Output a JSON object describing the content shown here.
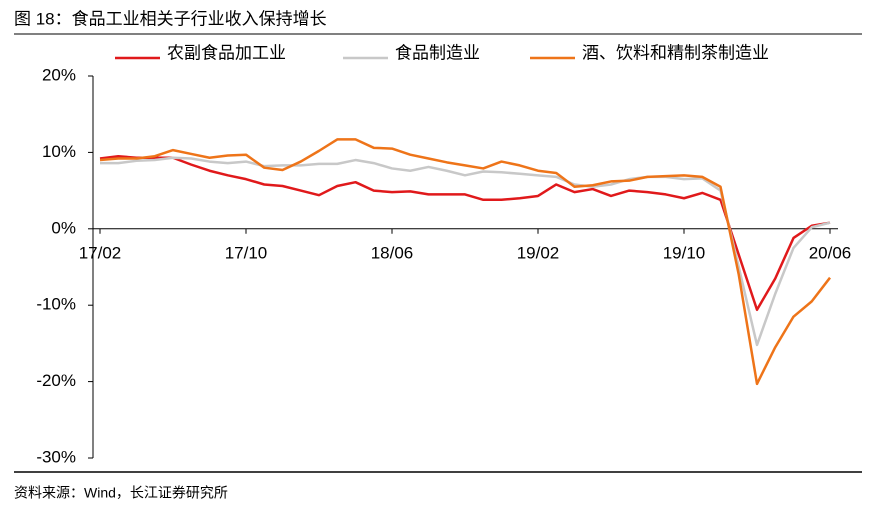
{
  "chart_data": {
    "type": "line",
    "title": "图 18：食品工业相关子行业收入保持增长",
    "source": "资料来源：Wind，长江证券研究所",
    "categories": [
      "17/02",
      null,
      null,
      null,
      null,
      null,
      null,
      null,
      "17/10",
      null,
      null,
      null,
      null,
      null,
      null,
      null,
      "18/06",
      null,
      null,
      null,
      null,
      null,
      null,
      null,
      "19/02",
      null,
      null,
      null,
      null,
      null,
      null,
      null,
      "19/10",
      null,
      null,
      null,
      null,
      null,
      null,
      null,
      "20/06"
    ],
    "series": [
      {
        "name": "农副食品加工业",
        "color": "#e0191b",
        "values": [
          9.2,
          9.5,
          9.3,
          9.3,
          9.3,
          8.4,
          7.6,
          7.0,
          6.5,
          5.8,
          5.6,
          5.0,
          4.4,
          5.6,
          6.1,
          5.0,
          4.8,
          4.9,
          4.5,
          4.5,
          4.5,
          3.8,
          3.8,
          4.0,
          4.3,
          5.8,
          4.8,
          5.2,
          4.3,
          5.0,
          4.8,
          4.5,
          4.0,
          4.7,
          3.8,
          -3.4,
          -10.6,
          -6.5,
          -1.2,
          0.4,
          0.8
        ]
      },
      {
        "name": "食品制造业",
        "color": "#c8c8c8",
        "values": [
          8.6,
          8.6,
          8.9,
          9.0,
          9.3,
          9.2,
          8.8,
          8.6,
          8.8,
          8.2,
          8.3,
          8.3,
          8.5,
          8.5,
          9.0,
          8.6,
          7.9,
          7.6,
          8.1,
          7.6,
          7.0,
          7.5,
          7.4,
          7.2,
          7.0,
          6.8,
          5.8,
          5.5,
          5.8,
          6.5,
          6.8,
          6.8,
          6.5,
          6.6,
          5.0,
          -5,
          -15.2,
          -8.5,
          -2.5,
          0.2,
          0.8
        ]
      },
      {
        "name": "酒、饮料和精制茶制造业",
        "color": "#ee7419",
        "values": [
          9.0,
          9.2,
          9.2,
          9.5,
          10.3,
          9.8,
          9.3,
          9.6,
          9.7,
          8.0,
          7.7,
          8.8,
          10.2,
          11.7,
          11.7,
          10.6,
          10.5,
          9.7,
          9.2,
          8.7,
          8.3,
          7.9,
          8.8,
          8.3,
          7.6,
          7.3,
          5.5,
          5.7,
          6.2,
          6.3,
          6.8,
          6.9,
          7.0,
          6.8,
          5.5,
          -6,
          -20.3,
          -15.5,
          -11.5,
          -9.5,
          -6.4
        ]
      }
    ],
    "ylim": [
      -30,
      20
    ],
    "yticks": [
      {
        "value": -30,
        "label": "-30%"
      },
      {
        "value": -20,
        "label": "-20%"
      },
      {
        "value": -10,
        "label": "-10%"
      },
      {
        "value": 0,
        "label": "0%"
      },
      {
        "value": 10,
        "label": "10%"
      },
      {
        "value": 20,
        "label": "20%"
      }
    ]
  }
}
